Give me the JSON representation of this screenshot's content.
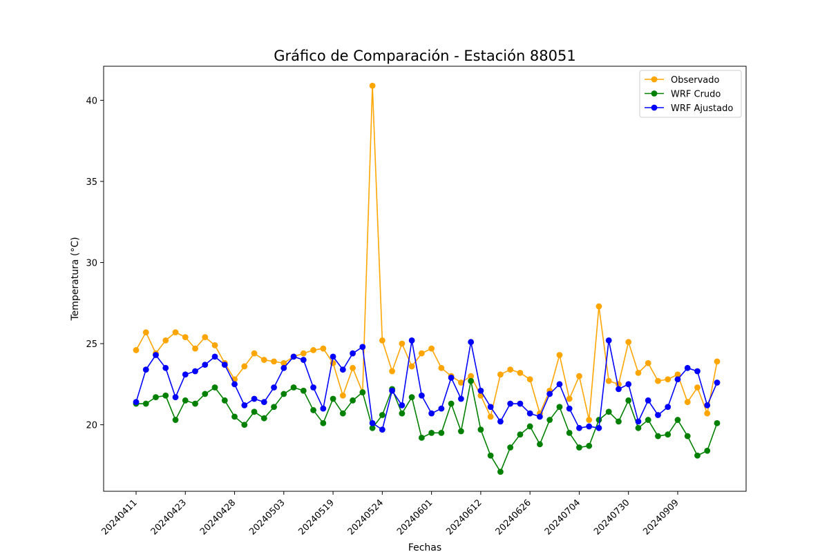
{
  "chart_data": {
    "type": "line",
    "title": "Gráfico de Comparación - Estación 88051",
    "xlabel": "Fechas",
    "ylabel": "Temperatura (°C)",
    "ylim": [
      15.9,
      42.1
    ],
    "yticks": [
      20,
      25,
      30,
      35,
      40
    ],
    "xtick_labels": [
      "20240411",
      "20240423",
      "20240428",
      "20240503",
      "20240519",
      "20240524",
      "20240601",
      "20240612",
      "20240626",
      "20240704",
      "20240730",
      "20240909"
    ],
    "xtick_every": 5,
    "grid": false,
    "legend_position": "top-right",
    "x": [
      1,
      2,
      3,
      4,
      5,
      6,
      7,
      8,
      9,
      10,
      11,
      12,
      13,
      14,
      15,
      16,
      17,
      18,
      19,
      20,
      21,
      22,
      23,
      24,
      25,
      26,
      27,
      28,
      29,
      30,
      31,
      32,
      33,
      34,
      35,
      36,
      37,
      38,
      39,
      40,
      41,
      42,
      43,
      44,
      45,
      46,
      47,
      48,
      49,
      50,
      51,
      52,
      53,
      54,
      55,
      56,
      57,
      58,
      59,
      60
    ],
    "series": [
      {
        "name": "Observado",
        "color": "#ffa500",
        "values": [
          24.6,
          25.7,
          24.4,
          25.2,
          25.7,
          25.4,
          24.7,
          25.4,
          24.9,
          23.8,
          22.8,
          23.6,
          24.4,
          24.0,
          23.9,
          23.8,
          24.2,
          24.4,
          24.6,
          24.7,
          23.8,
          21.8,
          23.5,
          22.0,
          40.9,
          25.2,
          23.3,
          25.0,
          23.6,
          24.4,
          24.7,
          23.5,
          23.0,
          22.6,
          23.0,
          21.8,
          20.5,
          23.1,
          23.4,
          23.2,
          22.8,
          20.7,
          22.1,
          24.3,
          21.6,
          23.0,
          20.3,
          27.3,
          22.7,
          22.5,
          25.1,
          23.2,
          23.8,
          22.7,
          22.8,
          23.1,
          21.4,
          22.3,
          20.7,
          23.9
        ]
      },
      {
        "name": "WRF Crudo",
        "color": "#008000",
        "values": [
          21.3,
          21.3,
          21.7,
          21.8,
          20.3,
          21.5,
          21.3,
          21.9,
          22.3,
          21.5,
          20.5,
          20.0,
          20.8,
          20.4,
          21.1,
          21.9,
          22.3,
          22.1,
          20.9,
          20.1,
          21.6,
          20.7,
          21.5,
          22.0,
          19.8,
          20.6,
          22.2,
          20.7,
          21.7,
          19.2,
          19.5,
          19.5,
          21.3,
          19.6,
          22.7,
          19.7,
          18.1,
          17.1,
          18.6,
          19.4,
          19.9,
          18.8,
          20.3,
          21.1,
          19.5,
          18.6,
          18.7,
          20.3,
          20.8,
          20.2,
          21.5,
          19.8,
          20.3,
          19.3,
          19.4,
          20.3,
          19.3,
          18.1,
          18.4,
          20.1
        ]
      },
      {
        "name": "WRF Ajustado",
        "color": "#0000ff",
        "values": [
          21.4,
          23.4,
          24.3,
          23.5,
          21.7,
          23.1,
          23.3,
          23.7,
          24.2,
          23.7,
          22.5,
          21.2,
          21.6,
          21.4,
          22.3,
          23.5,
          24.2,
          24.0,
          22.3,
          21.0,
          24.2,
          23.4,
          24.4,
          24.8,
          20.1,
          19.7,
          22.1,
          21.2,
          25.2,
          21.8,
          20.7,
          21.0,
          22.9,
          21.6,
          25.1,
          22.1,
          21.1,
          20.2,
          21.3,
          21.3,
          20.7,
          20.5,
          21.9,
          22.5,
          21.0,
          19.8,
          19.9,
          19.8,
          25.2,
          22.2,
          22.5,
          20.2,
          21.5,
          20.6,
          21.1,
          22.8,
          23.5,
          23.3,
          21.2,
          22.6
        ]
      }
    ]
  }
}
